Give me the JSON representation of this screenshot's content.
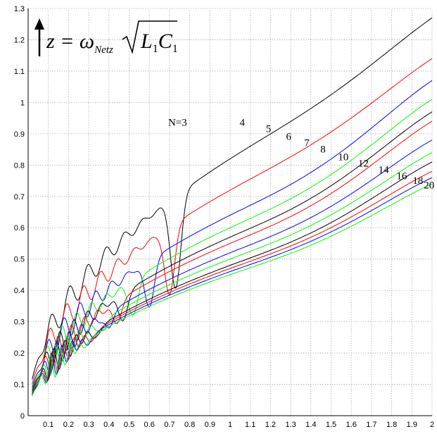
{
  "chart_data": {
    "type": "line",
    "title": "",
    "xlabel": "",
    "ylabel": "",
    "formula": {
      "lhs": "z = ω",
      "sub": "Netz",
      "radicand_L": "L",
      "radicand_L_sub": "1",
      "radicand_C": "C",
      "radicand_C_sub": "1"
    },
    "xlim": [
      0,
      2
    ],
    "ylim": [
      0,
      1.3
    ],
    "x_ticks": [
      0.1,
      0.2,
      0.3,
      0.4,
      0.5,
      0.6,
      0.7,
      0.8,
      0.9,
      1,
      1.1,
      1.2,
      1.3,
      1.4,
      1.5,
      1.6,
      1.7,
      1.8,
      1.9,
      2
    ],
    "x_tick_labels": [
      "0.1",
      "0.2",
      "0.3",
      "0.4",
      "0.5",
      "0.6",
      "0.7",
      "0.8",
      "0.9",
      "1",
      "1.1",
      "1.2",
      "1.3",
      "1.4",
      "1.5",
      "1.6",
      "1.7",
      "1.8",
      "1.9",
      "2"
    ],
    "y_ticks": [
      0,
      0.1,
      0.2,
      0.3,
      0.4,
      0.5,
      0.6,
      0.7,
      0.8,
      0.9,
      1,
      1.1,
      1.2,
      1.3
    ],
    "y_tick_labels": [
      "0",
      "0.1",
      "0.2",
      "0.3",
      "0.4",
      "0.5",
      "0.6",
      "0.7",
      "0.8",
      "0.9",
      "1",
      "1.1",
      "1.2",
      "1.3"
    ],
    "grid": true,
    "series": [
      {
        "name": "N=3",
        "color": "#000000",
        "start": 0.82,
        "end": 1.27,
        "t": 0.73,
        "amp": 0.42,
        "labelX": 0.74,
        "labelY": 0.925
      },
      {
        "name": "4",
        "color": "#ff0000",
        "start": 0.72,
        "end": 1.14,
        "t": 0.7,
        "amp": 0.36,
        "labelX": 1.06,
        "labelY": 0.925
      },
      {
        "name": "5",
        "color": "#0000ff",
        "start": 0.64,
        "end": 1.07,
        "t": 0.6,
        "amp": 0.3,
        "labelX": 1.19,
        "labelY": 0.905
      },
      {
        "name": "6",
        "color": "#00ff00",
        "start": 0.6,
        "end": 1.01,
        "t": 0.52,
        "amp": 0.26,
        "labelX": 1.29,
        "labelY": 0.88
      },
      {
        "name": "7",
        "color": "#000000",
        "start": 0.57,
        "end": 0.97,
        "t": 0.47,
        "amp": 0.22,
        "labelX": 1.38,
        "labelY": 0.86
      },
      {
        "name": "8",
        "color": "#ff0000",
        "start": 0.55,
        "end": 0.94,
        "t": 0.44,
        "amp": 0.19,
        "labelX": 1.46,
        "labelY": 0.84
      },
      {
        "name": "10",
        "color": "#0000ff",
        "start": 0.52,
        "end": 0.88,
        "t": 0.4,
        "amp": 0.15,
        "labelX": 1.56,
        "labelY": 0.815
      },
      {
        "name": "12",
        "color": "#00ff00",
        "start": 0.5,
        "end": 0.84,
        "t": 0.37,
        "amp": 0.12,
        "labelX": 1.66,
        "labelY": 0.795
      },
      {
        "name": "14",
        "color": "#000000",
        "start": 0.48,
        "end": 0.81,
        "t": 0.34,
        "amp": 0.1,
        "labelX": 1.76,
        "labelY": 0.775
      },
      {
        "name": "16",
        "color": "#ff0000",
        "start": 0.47,
        "end": 0.78,
        "t": 0.32,
        "amp": 0.09,
        "labelX": 1.85,
        "labelY": 0.755
      },
      {
        "name": "18",
        "color": "#0000ff",
        "start": 0.46,
        "end": 0.76,
        "t": 0.3,
        "amp": 0.08,
        "labelX": 1.93,
        "labelY": 0.74
      },
      {
        "name": "20",
        "color": "#00ff00",
        "start": 0.45,
        "end": 0.74,
        "t": 0.28,
        "amp": 0.07,
        "labelX": 1.985,
        "labelY": 0.725
      }
    ]
  }
}
